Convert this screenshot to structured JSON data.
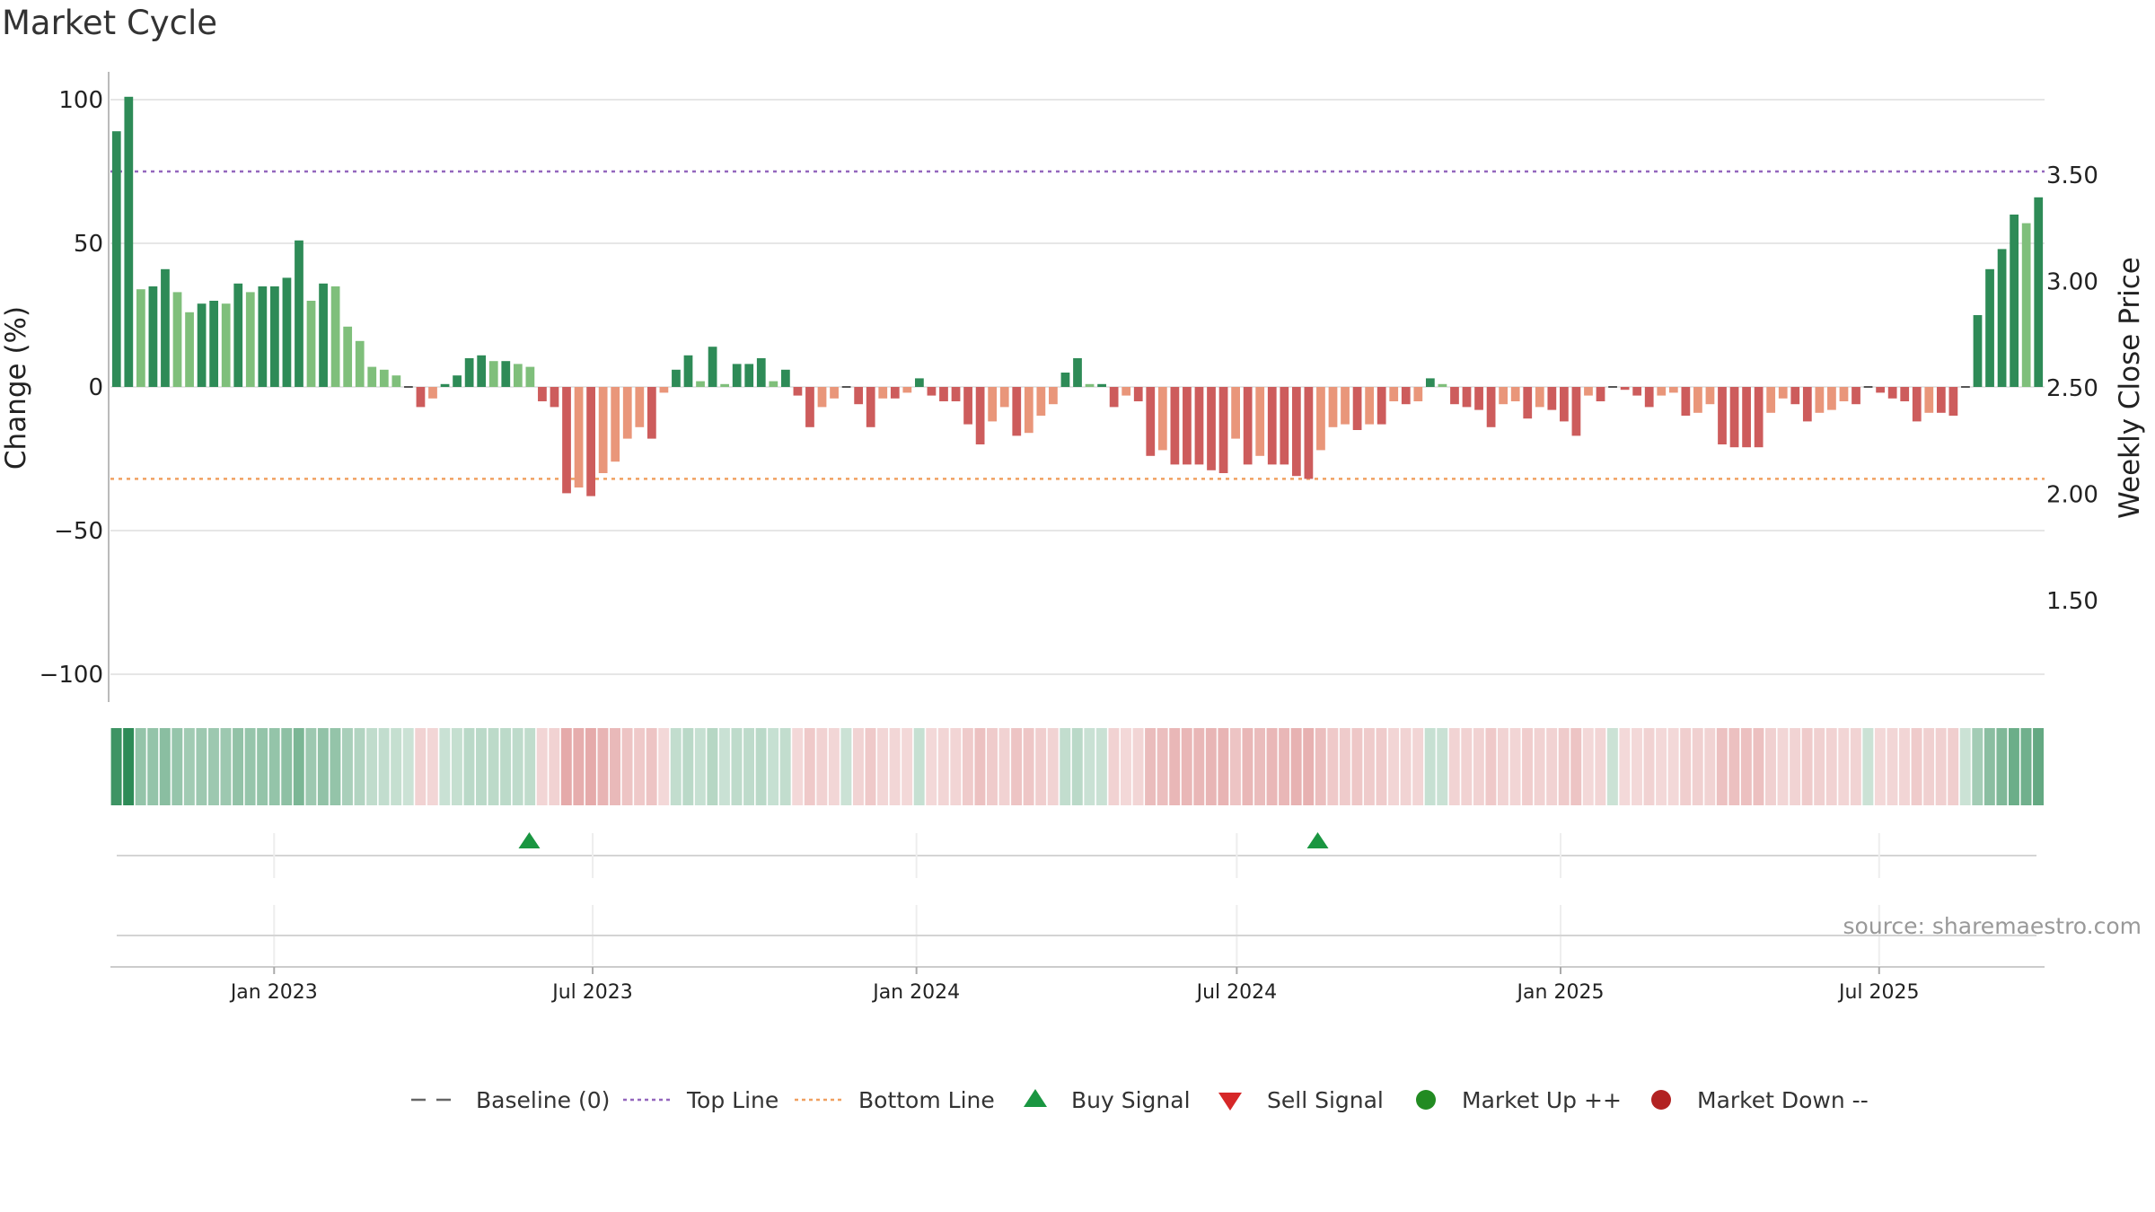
{
  "chart_data": {
    "type": "bar",
    "title": "Market Cycle",
    "ylabel_left": "Change (%)",
    "ylabel_right": "Weekly Close Price",
    "ylim_left": [
      -110,
      110
    ],
    "yticks_left": [
      {
        "value": 100,
        "label": "100"
      },
      {
        "value": 50,
        "label": "50"
      },
      {
        "value": 0,
        "label": "0"
      },
      {
        "value": -50,
        "label": "−50"
      },
      {
        "value": -100,
        "label": "−100"
      }
    ],
    "yticks_right": [
      {
        "value": 3.5,
        "label": "3.50"
      },
      {
        "value": 3.0,
        "label": "3.00"
      },
      {
        "value": 2.5,
        "label": "2.50"
      },
      {
        "value": 2.0,
        "label": "2.00"
      },
      {
        "value": 1.5,
        "label": "1.50"
      }
    ],
    "ylim_right": [
      1.15,
      3.85
    ],
    "top_line": 75,
    "bottom_line": -32,
    "x_start": "2022-09-30",
    "x_end": "2025-10-03",
    "date_ticks": [
      {
        "date": "2023-01-01",
        "label": "Jan 2023"
      },
      {
        "date": "2023-07-01",
        "label": "Jul 2023"
      },
      {
        "date": "2024-01-01",
        "label": "Jan 2024"
      },
      {
        "date": "2024-07-01",
        "label": "Jul 2024"
      },
      {
        "date": "2025-01-01",
        "label": "Jan 2025"
      },
      {
        "date": "2025-07-01",
        "label": "Jul 2025"
      }
    ],
    "weekly_start": "2022-09-30",
    "weekly_change": [
      89,
      101,
      34,
      35,
      41,
      33,
      26,
      29,
      30,
      29,
      36,
      33,
      35,
      35,
      38,
      51,
      30,
      36,
      35,
      21,
      16,
      7,
      6,
      4,
      0,
      -7,
      -4,
      1,
      4,
      10,
      11,
      9,
      9,
      8,
      7,
      -5,
      -7,
      -37,
      -35,
      -38,
      -30,
      -26,
      -18,
      -14,
      -18,
      -2,
      6,
      11,
      2,
      14,
      1,
      8,
      8,
      10,
      2,
      6,
      -3,
      -14,
      -7,
      -4,
      0,
      -6,
      -14,
      -4,
      -4,
      -2,
      3,
      -3,
      -5,
      -5,
      -13,
      -20,
      -12,
      -7,
      -17,
      -16,
      -10,
      -6,
      5,
      10,
      1,
      1,
      -7,
      -3,
      -5,
      -24,
      -22,
      -27,
      -27,
      -27,
      -29,
      -30,
      -18,
      -27,
      -24,
      -27,
      -27,
      -31,
      -32,
      -22,
      -14,
      -13,
      -15,
      -13,
      -13,
      -5,
      -6,
      -5,
      3,
      1,
      -6,
      -7,
      -8,
      -14,
      -6,
      -5,
      -11,
      -7,
      -8,
      -12,
      -17,
      -3,
      -5,
      0,
      -1,
      -3,
      -7,
      -3,
      -2,
      -10,
      -9,
      -6,
      -20,
      -21,
      -21,
      -21,
      -9,
      -4,
      -6,
      -12,
      -9,
      -8,
      -5,
      -6,
      0,
      -2,
      -4,
      -5,
      -12,
      -9,
      -9,
      -10,
      0,
      25,
      41,
      48,
      60,
      57,
      66
    ],
    "buy_signals": [
      "2023-05-26",
      "2024-08-16"
    ],
    "sell_signals": []
  },
  "legend": [
    {
      "key": "baseline",
      "label": "Baseline (0)"
    },
    {
      "key": "top",
      "label": "Top Line"
    },
    {
      "key": "bottom",
      "label": "Bottom Line"
    },
    {
      "key": "buy",
      "label": "Buy Signal"
    },
    {
      "key": "sell",
      "label": "Sell Signal"
    },
    {
      "key": "up",
      "label": "Market Up ++"
    },
    {
      "key": "down",
      "label": "Market Down --"
    }
  ],
  "source": "source: sharemaestro.com",
  "colors": {
    "strong_up": "#2e8b57",
    "weak_up": "#7fbf7b",
    "strong_down": "#cd5c5c",
    "weak_down": "#e9967a",
    "top_line": "#9467bd",
    "bottom_line": "#f0a060",
    "buy": "#1a9641",
    "sell": "#d62728",
    "market_up": "#228b22",
    "market_down": "#b22222"
  }
}
